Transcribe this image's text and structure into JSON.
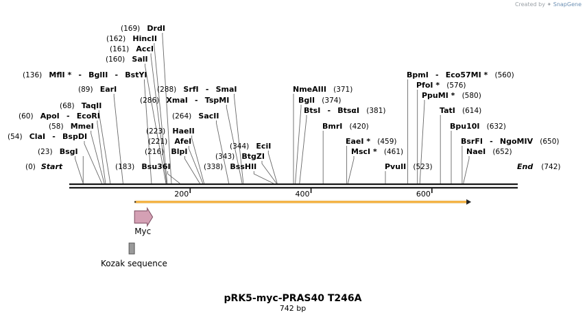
{
  "watermark": {
    "prefix": "Created by",
    "brand": "SnapGene"
  },
  "map": {
    "title": "pRK5-myc-PRAS40 T246A",
    "length_label": "742 bp",
    "length_bp": 742,
    "ticks": [
      {
        "bp": 200,
        "label": "200"
      },
      {
        "bp": 400,
        "label": "400"
      },
      {
        "bp": 600,
        "label": "600"
      }
    ],
    "start": {
      "label": "Start",
      "pos_label": "(0)",
      "bp": 0
    },
    "end": {
      "label": "End",
      "pos_label": "(742)",
      "bp": 742
    },
    "sites": [
      {
        "bp": 23,
        "parts": [
          {
            "pos": "(23)"
          },
          {
            "name": "BsgI"
          }
        ]
      },
      {
        "bp": 54,
        "parts": [
          {
            "pos": "(54)"
          },
          {
            "name": "ClaI"
          },
          {
            "sep": "-"
          },
          {
            "name": "BspDI"
          }
        ]
      },
      {
        "bp": 58,
        "parts": [
          {
            "pos": "(58)"
          },
          {
            "name": "MmeI"
          }
        ]
      },
      {
        "bp": 60,
        "parts": [
          {
            "pos": "(60)"
          },
          {
            "name": "ApoI"
          },
          {
            "sep": "-"
          },
          {
            "name": "EcoRI"
          }
        ]
      },
      {
        "bp": 68,
        "parts": [
          {
            "pos": "(68)"
          },
          {
            "name": "TaqII"
          }
        ]
      },
      {
        "bp": 89,
        "parts": [
          {
            "pos": "(89)"
          },
          {
            "name": "EarI"
          }
        ]
      },
      {
        "bp": 136,
        "parts": [
          {
            "pos": "(136)"
          },
          {
            "name": "MflI",
            "star": true
          },
          {
            "sep": "-"
          },
          {
            "name": "BglII"
          },
          {
            "sep": "-"
          },
          {
            "name": "BstYI"
          }
        ]
      },
      {
        "bp": 160,
        "parts": [
          {
            "pos": "(160)"
          },
          {
            "name": "SalI"
          }
        ]
      },
      {
        "bp": 161,
        "parts": [
          {
            "pos": "(161)"
          },
          {
            "name": "AccI"
          }
        ]
      },
      {
        "bp": 162,
        "parts": [
          {
            "pos": "(162)"
          },
          {
            "name": "HincII"
          }
        ]
      },
      {
        "bp": 169,
        "parts": [
          {
            "pos": "(169)"
          },
          {
            "name": "DrdI"
          }
        ]
      },
      {
        "bp": 183,
        "parts": [
          {
            "pos": "(183)"
          },
          {
            "name": "Bsu36I"
          }
        ]
      },
      {
        "bp": 216,
        "parts": [
          {
            "pos": "(216)"
          },
          {
            "name": "BlpI"
          }
        ]
      },
      {
        "bp": 221,
        "parts": [
          {
            "pos": "(221)"
          },
          {
            "name": "AfeI"
          }
        ]
      },
      {
        "bp": 223,
        "parts": [
          {
            "pos": "(223)"
          },
          {
            "name": "HaeII"
          }
        ]
      },
      {
        "bp": 264,
        "parts": [
          {
            "pos": "(264)"
          },
          {
            "name": "SacII"
          }
        ]
      },
      {
        "bp": 286,
        "parts": [
          {
            "pos": "(286)"
          },
          {
            "name": "XmaI"
          },
          {
            "sep": "-"
          },
          {
            "name": "TspMI"
          }
        ]
      },
      {
        "bp": 288,
        "parts": [
          {
            "pos": "(288)"
          },
          {
            "name": "SrfI"
          },
          {
            "sep": "-"
          },
          {
            "name": "SmaI"
          }
        ]
      },
      {
        "bp": 338,
        "parts": [
          {
            "pos": "(338)"
          },
          {
            "name": "BssHII"
          }
        ]
      },
      {
        "bp": 343,
        "parts": [
          {
            "pos": "(343)"
          },
          {
            "name": "BtgZI"
          }
        ]
      },
      {
        "bp": 344,
        "parts": [
          {
            "pos": "(344)"
          },
          {
            "name": "EciI"
          }
        ]
      },
      {
        "bp": 371,
        "parts": [
          {
            "name": "NmeAIII"
          },
          {
            "pos": "(371)"
          }
        ]
      },
      {
        "bp": 374,
        "parts": [
          {
            "name": "BglI"
          },
          {
            "pos": "(374)"
          }
        ]
      },
      {
        "bp": 381,
        "parts": [
          {
            "name": "BtsI"
          },
          {
            "sep": "-"
          },
          {
            "name": "BtsαI"
          },
          {
            "pos": "(381)"
          }
        ]
      },
      {
        "bp": 420,
        "parts": [
          {
            "name": "BmrI"
          },
          {
            "pos": "(420)"
          }
        ]
      },
      {
        "bp": 459,
        "parts": [
          {
            "name": "EaeI",
            "star": true
          },
          {
            "pos": "(459)"
          }
        ]
      },
      {
        "bp": 461,
        "parts": [
          {
            "name": "MscI",
            "star": true
          },
          {
            "pos": "(461)"
          }
        ]
      },
      {
        "bp": 523,
        "parts": [
          {
            "name": "PvuII"
          },
          {
            "pos": "(523)"
          }
        ]
      },
      {
        "bp": 560,
        "parts": [
          {
            "name": "BpmI"
          },
          {
            "sep": "-"
          },
          {
            "name": "Eco57MI",
            "star": true
          },
          {
            "pos": "(560)"
          }
        ]
      },
      {
        "bp": 576,
        "parts": [
          {
            "name": "PfoI",
            "star": true
          },
          {
            "pos": "(576)"
          }
        ]
      },
      {
        "bp": 580,
        "parts": [
          {
            "name": "PpuMI",
            "star": true
          },
          {
            "pos": "(580)"
          }
        ]
      },
      {
        "bp": 614,
        "parts": [
          {
            "name": "TatI"
          },
          {
            "pos": "(614)"
          }
        ]
      },
      {
        "bp": 632,
        "parts": [
          {
            "name": "Bpu10I"
          },
          {
            "pos": "(632)"
          }
        ]
      },
      {
        "bp": 650,
        "parts": [
          {
            "name": "BsrFI"
          },
          {
            "sep": "-"
          },
          {
            "name": "NgoMIV"
          },
          {
            "pos": "(650)"
          }
        ]
      },
      {
        "bp": 652,
        "parts": [
          {
            "name": "NaeI"
          },
          {
            "pos": "(652)"
          }
        ]
      }
    ],
    "orf": {
      "start_bp": 108,
      "end_bp": 665,
      "color": "#f5a623",
      "edge_color": "#e0b050"
    },
    "features": [
      {
        "name": "Myc",
        "type": "arrow",
        "start_bp": 108,
        "end_bp": 138,
        "color": "#d4a0b4",
        "stroke": "#7a4a5e"
      },
      {
        "name": "Kozak sequence",
        "type": "box",
        "start_bp": 100,
        "end_bp": 109,
        "color": "#9a9a9a",
        "stroke": "#555555"
      }
    ]
  }
}
